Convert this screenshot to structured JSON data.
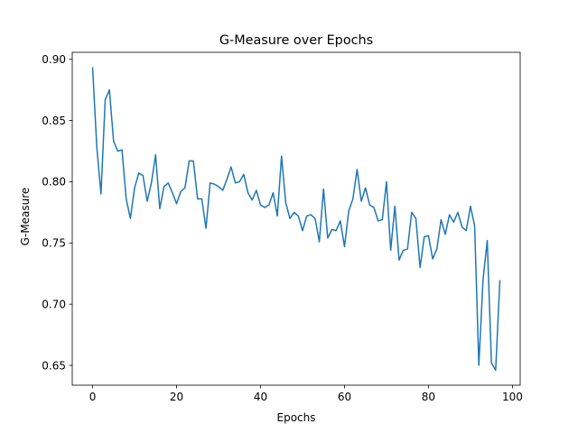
{
  "chart_data": {
    "type": "line",
    "title": "G-Measure over Epochs",
    "xlabel": "Epochs",
    "ylabel": "G-Measure",
    "xlim": [
      -4.85,
      101.85
    ],
    "ylim": [
      0.6338,
      0.9057
    ],
    "xticks": [
      0,
      20,
      40,
      60,
      80,
      100
    ],
    "yticks": [
      0.65,
      0.7,
      0.75,
      0.8,
      0.85,
      0.9
    ],
    "xtick_labels": [
      "0",
      "20",
      "40",
      "60",
      "80",
      "100"
    ],
    "ytick_labels": [
      "0.65",
      "0.70",
      "0.75",
      "0.80",
      "0.85",
      "0.90"
    ],
    "grid": false,
    "legend": "none",
    "line_color": "#1f77b4",
    "series": [
      {
        "values": [
          0.893,
          0.828,
          0.79,
          0.867,
          0.875,
          0.833,
          0.825,
          0.826,
          0.786,
          0.77,
          0.795,
          0.807,
          0.805,
          0.784,
          0.799,
          0.822,
          0.778,
          0.796,
          0.799,
          0.791,
          0.782,
          0.792,
          0.795,
          0.817,
          0.817,
          0.786,
          0.786,
          0.762,
          0.799,
          0.798,
          0.796,
          0.793,
          0.802,
          0.812,
          0.799,
          0.8,
          0.806,
          0.791,
          0.785,
          0.793,
          0.781,
          0.779,
          0.781,
          0.791,
          0.772,
          0.821,
          0.783,
          0.77,
          0.775,
          0.772,
          0.76,
          0.772,
          0.773,
          0.77,
          0.751,
          0.794,
          0.754,
          0.761,
          0.76,
          0.768,
          0.747,
          0.776,
          0.786,
          0.81,
          0.784,
          0.795,
          0.781,
          0.779,
          0.768,
          0.769,
          0.8,
          0.744,
          0.78,
          0.736,
          0.744,
          0.745,
          0.775,
          0.77,
          0.73,
          0.755,
          0.756,
          0.737,
          0.745,
          0.769,
          0.757,
          0.773,
          0.767,
          0.775,
          0.763,
          0.76,
          0.78,
          0.764,
          0.65,
          0.72,
          0.752,
          0.652,
          0.646,
          0.719
        ]
      }
    ]
  }
}
